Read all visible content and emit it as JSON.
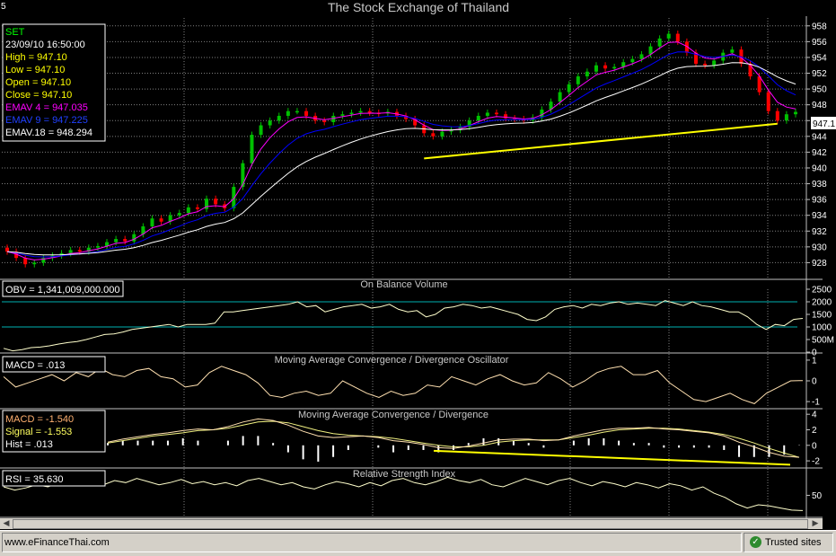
{
  "window": {
    "title": "The Stock Exchange of Thailand",
    "corner_label": "5"
  },
  "colors": {
    "background": "#000000",
    "grid": "#808080",
    "up_candle": "#00c000",
    "down_candle": "#ff0000",
    "ema4": "#ff00ff",
    "ema9": "#0000ff",
    "ema18": "#ffffff",
    "trendline": "#ffff00",
    "obv_line": "#ffffcc",
    "ref_line": "#00b0b0",
    "macd_line": "#ffe0b0",
    "signal_line": "#f0f080",
    "hist": "#ffffff"
  },
  "price_panel": {
    "legend": {
      "symbol": "SET",
      "datetime": "23/09/10 16:50:00",
      "high": "High  = 947.10",
      "low": "Low   = 947.10",
      "open": "Open = 947.10",
      "close": "Close = 947.10",
      "ema4": "EMAV 4 = 947.035",
      "ema9": "EMAV 9 = 947.225",
      "ema18": "EMAV.18 = 948.294"
    },
    "last_price_label": "947.1"
  },
  "obv_panel": {
    "title": "On Balance Volume",
    "legend": "OBV = 1,341,009,000.000"
  },
  "macd_osc_panel": {
    "title": "Moving Average Convergence / Divergence Oscillator",
    "legend": "MACD = .013"
  },
  "macd_panel": {
    "title": "Moving Average Convergence / Divergence",
    "legend_macd": "MACD = -1.540",
    "legend_signal": "Signal = -1.553",
    "legend_hist": "Hist = .013"
  },
  "rsi_panel": {
    "title": "Relative Strength Index",
    "legend": "RSI = 35.630"
  },
  "statusbar": {
    "left_text": "www.eFinanceThai.com",
    "right_text": "Trusted sites",
    "right_icon": "checkmark-icon"
  },
  "chart_data": [
    {
      "type": "candlestick",
      "title": "The Stock Exchange of Thailand",
      "series_name": "SET",
      "ylim": [
        926,
        959
      ],
      "y_ticks": [
        928,
        930,
        932,
        934,
        936,
        938,
        940,
        942,
        944,
        946,
        948,
        950,
        952,
        954,
        956,
        958
      ],
      "close": [
        929.4,
        928.6,
        927.8,
        928.0,
        928.6,
        928.9,
        929.2,
        929.6,
        929.4,
        929.9,
        930.1,
        930.6,
        931.0,
        930.7,
        931.6,
        932.6,
        933.6,
        933.2,
        934.0,
        934.3,
        935.0,
        934.8,
        936.1,
        935.4,
        934.9,
        937.6,
        940.6,
        944.2,
        945.4,
        946.0,
        946.6,
        947.2,
        947.2,
        946.6,
        946.0,
        945.8,
        946.6,
        946.8,
        947.0,
        947.2,
        947.0,
        946.9,
        947.1,
        946.6,
        946.2,
        945.4,
        944.4,
        944.0,
        944.6,
        944.8,
        945.2,
        946.0,
        946.6,
        947.0,
        946.8,
        946.3,
        946.2,
        946.0,
        946.4,
        947.4,
        948.4,
        949.6,
        950.6,
        951.6,
        952.2,
        953.0,
        952.6,
        952.8,
        953.4,
        953.8,
        954.4,
        955.4,
        956.4,
        957.0,
        956.0,
        954.6,
        953.2,
        953.0,
        953.6,
        954.6,
        955.0,
        953.2,
        951.6,
        949.6,
        947.2,
        946.0,
        946.8,
        947.1
      ]
    },
    {
      "type": "line",
      "name": "EMAV 4",
      "last_value": 947.035
    },
    {
      "type": "line",
      "name": "EMAV 9",
      "last_value": 947.225
    },
    {
      "type": "line",
      "name": "EMAV.18",
      "last_value": 948.294
    },
    {
      "type": "line",
      "title": "On Balance Volume",
      "series_name": "OBV",
      "ylim": [
        0,
        2500
      ],
      "y_ticks": [
        "0",
        "500M",
        "1000",
        "1500",
        "2000",
        "2500"
      ],
      "ref_lines": [
        1000,
        2000
      ],
      "values": [
        150,
        50,
        100,
        180,
        200,
        250,
        320,
        380,
        420,
        500,
        600,
        700,
        720,
        800,
        900,
        950,
        1000,
        1050,
        1100,
        1000,
        1100,
        1100,
        1100,
        1150,
        1600,
        1600,
        1650,
        1700,
        1750,
        1800,
        1850,
        1900,
        2000,
        1800,
        1850,
        1600,
        1700,
        1800,
        1850,
        1900,
        1750,
        1800,
        1900,
        1700,
        1600,
        1650,
        1400,
        1500,
        1750,
        1800,
        1900,
        1850,
        1750,
        1800,
        1700,
        1600,
        1500,
        1300,
        1250,
        1400,
        1700,
        1800,
        1850,
        1750,
        1900,
        1850,
        1950,
        2000,
        1900,
        1950,
        1900,
        1850,
        2050,
        1950,
        1850,
        2000,
        1850,
        1800,
        1700,
        1600,
        1600,
        1400,
        1100,
        900,
        1100,
        1050,
        1300,
        1341
      ]
    },
    {
      "type": "line",
      "title": "Moving Average Convergence / Divergence Oscillator",
      "series_name": "MACD",
      "ylim": [
        -1.3,
        1.3
      ],
      "y_ticks": [
        -1,
        0,
        1
      ],
      "values": [
        0.2,
        -0.3,
        -0.1,
        0.1,
        0.3,
        0.0,
        0.4,
        0.2,
        0.6,
        0.3,
        0.2,
        0.5,
        0.6,
        0.2,
        0.1,
        -0.3,
        -0.2,
        0.4,
        0.7,
        0.5,
        0.3,
        -0.1,
        -0.7,
        -0.8,
        -0.6,
        -0.5,
        -0.7,
        -0.6,
        0.0,
        -0.3,
        -0.6,
        -0.8,
        -0.5,
        -0.7,
        -0.6,
        -0.2,
        -0.3,
        0.2,
        0.0,
        -0.2,
        0.1,
        0.3,
        0.0,
        -0.2,
        -0.1,
        0.4,
        0.1,
        -0.3,
        0.0,
        0.4,
        0.6,
        0.7,
        0.3,
        0.3,
        0.5,
        -0.1,
        -0.5,
        -0.9,
        -1.0,
        -0.8,
        -0.6,
        -0.9,
        -1.1,
        -0.6,
        -0.3,
        0.0,
        0.013
      ]
    },
    {
      "type": "line",
      "title": "Moving Average Convergence / Divergence",
      "ylim": [
        -2.8,
        4.6
      ],
      "y_ticks": [
        -2,
        0,
        2,
        4
      ],
      "series": [
        {
          "name": "MACD",
          "values": [
            0.4,
            0.8,
            1.1,
            1.4,
            1.6,
            1.9,
            2.1,
            2.0,
            2.4,
            3.0,
            3.4,
            3.2,
            2.6,
            1.8,
            1.2,
            1.0,
            1.1,
            1.2,
            1.0,
            0.6,
            0.4,
            0.1,
            -0.3,
            -0.4,
            -0.1,
            0.3,
            0.7,
            0.8,
            0.8,
            0.6,
            0.7,
            1.2,
            1.6,
            2.0,
            2.2,
            2.2,
            2.3,
            2.1,
            2.0,
            1.8,
            1.6,
            1.2,
            0.4,
            -0.2,
            -0.9,
            -1.4,
            -1.54
          ]
        },
        {
          "name": "Signal",
          "values": [
            0.3,
            0.6,
            0.9,
            1.2,
            1.4,
            1.6,
            1.9,
            2.0,
            2.2,
            2.6,
            3.0,
            3.1,
            2.9,
            2.4,
            1.9,
            1.5,
            1.3,
            1.2,
            1.1,
            0.9,
            0.6,
            0.3,
            0.0,
            -0.2,
            -0.2,
            0.0,
            0.4,
            0.6,
            0.7,
            0.7,
            0.7,
            1.0,
            1.3,
            1.7,
            2.0,
            2.1,
            2.2,
            2.2,
            2.1,
            1.9,
            1.7,
            1.4,
            0.9,
            0.3,
            -0.4,
            -1.0,
            -1.553
          ]
        },
        {
          "name": "Hist",
          "type": "bar",
          "last_value": 0.013
        }
      ]
    },
    {
      "type": "line",
      "title": "Relative Strength Index",
      "series_name": "RSI",
      "ylim": [
        30,
        75
      ],
      "y_ticks": [
        50
      ],
      "values": [
        58,
        55,
        57,
        60,
        58,
        62,
        59,
        63,
        61,
        60,
        64,
        62,
        66,
        63,
        60,
        62,
        65,
        61,
        63,
        60,
        62,
        59,
        64,
        66,
        63,
        60,
        62,
        58,
        56,
        60,
        63,
        61,
        58,
        62,
        59,
        64,
        66,
        62,
        60,
        63,
        67,
        64,
        62,
        65,
        60,
        58,
        62,
        66,
        63,
        60,
        64,
        66,
        62,
        59,
        63,
        61,
        58,
        62,
        60,
        57,
        61,
        59,
        55,
        58,
        52,
        48,
        42,
        38,
        41,
        40,
        38,
        36,
        35.63
      ]
    }
  ]
}
